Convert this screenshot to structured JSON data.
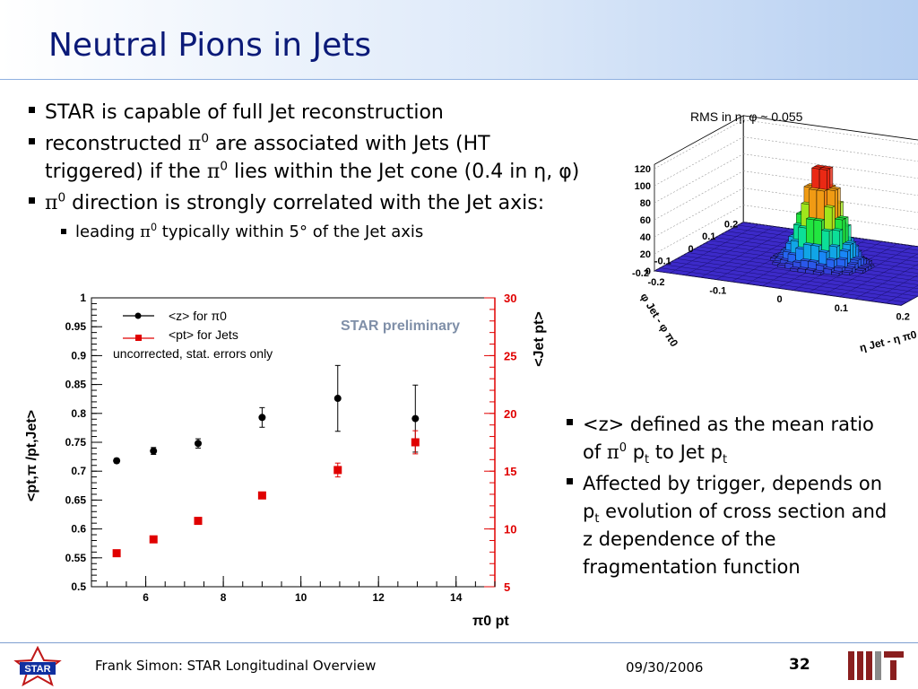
{
  "slide": {
    "title": "Neutral Pions in Jets",
    "bullets_top": [
      {
        "text": "STAR is capable of full Jet reconstruction"
      },
      {
        "pre": "reconstructed ",
        "pi": "π",
        "sup": "0",
        "post": " are associated with Jets (HT"
      },
      {
        "pre": "triggered) if the ",
        "pi": "π",
        "sup": "0",
        "post": " lies within the Jet cone (0.4 in η, φ)"
      },
      {
        "pi": "π",
        "sup": "0",
        "post": " direction is strongly correlated with the Jet axis:"
      },
      {
        "pre": "leading ",
        "pi": "π",
        "sup": "0",
        "post": " typically within 5°  of the Jet axis"
      }
    ],
    "bullets_right": [
      {
        "a": "<z> defined as the mean ratio",
        "b": "of ",
        "pi": "π",
        "sup": "0",
        "c": " p",
        "sub1": "t",
        "d": " to Jet p",
        "sub2": "t"
      },
      {
        "a": "Affected by trigger, depends on",
        "b": "p",
        "sub1": "t",
        "c": " evolution of cross section and",
        "d": "z dependence of the",
        "e": "fragmentation function"
      }
    ]
  },
  "lego": {
    "title": "RMS in η, φ ~ 0.055",
    "z_ticks": [
      "0",
      "20",
      "40",
      "60",
      "80",
      "100",
      "120"
    ],
    "x_ticks": [
      "-0.2",
      "-0.1",
      "0",
      "0.1",
      "0.2"
    ],
    "y_ticks": [
      "-0.2",
      "-0.1",
      "0",
      "0.1",
      "0.2"
    ],
    "x_label": "η Jet - η π0",
    "y_label": "φ Jet - φ π0"
  },
  "chart_data": {
    "type": "scatter",
    "x_label": "π0 pt",
    "y_label_left": "<pt,π /pt,Jet>",
    "y_label_right": "<Jet pt>",
    "xlim": [
      4.6,
      15.0
    ],
    "ylim_left": [
      0.5,
      1.0
    ],
    "ylim_right": [
      5,
      30
    ],
    "x_ticks": [
      6,
      8,
      10,
      12,
      14
    ],
    "y_ticks_left": [
      0.5,
      0.55,
      0.6,
      0.65,
      0.7,
      0.75,
      0.8,
      0.85,
      0.9,
      0.95,
      1
    ],
    "y_ticks_right": [
      5,
      10,
      15,
      20,
      25,
      30
    ],
    "legend": [
      {
        "label": "<z> for π0",
        "color": "#000000"
      },
      {
        "label": "<pt> for Jets",
        "color": "#e00000"
      }
    ],
    "note": "uncorrected, stat. errors only",
    "watermark": "STAR preliminary",
    "series": [
      {
        "name": "<z> for π0",
        "axis": "left",
        "color": "#000000",
        "x": [
          5.25,
          6.2,
          7.35,
          9.0,
          10.95,
          12.95
        ],
        "y": [
          0.718,
          0.735,
          0.748,
          0.793,
          0.826,
          0.791
        ],
        "err": [
          0.004,
          0.006,
          0.008,
          0.017,
          0.057,
          0.058
        ]
      },
      {
        "name": "<pt> for Jets",
        "axis": "right",
        "color": "#e00000",
        "x": [
          5.25,
          6.2,
          7.35,
          9.0,
          10.95,
          12.95
        ],
        "y": [
          7.9,
          9.1,
          10.7,
          12.9,
          15.1,
          17.5
        ],
        "err": [
          0.1,
          0.1,
          0.1,
          0.2,
          0.6,
          1.0
        ]
      }
    ]
  },
  "footer": {
    "author": "Frank Simon: STAR Longitudinal Overview",
    "date": "09/30/2006",
    "page": "32",
    "star_logo_text": "STAR"
  }
}
